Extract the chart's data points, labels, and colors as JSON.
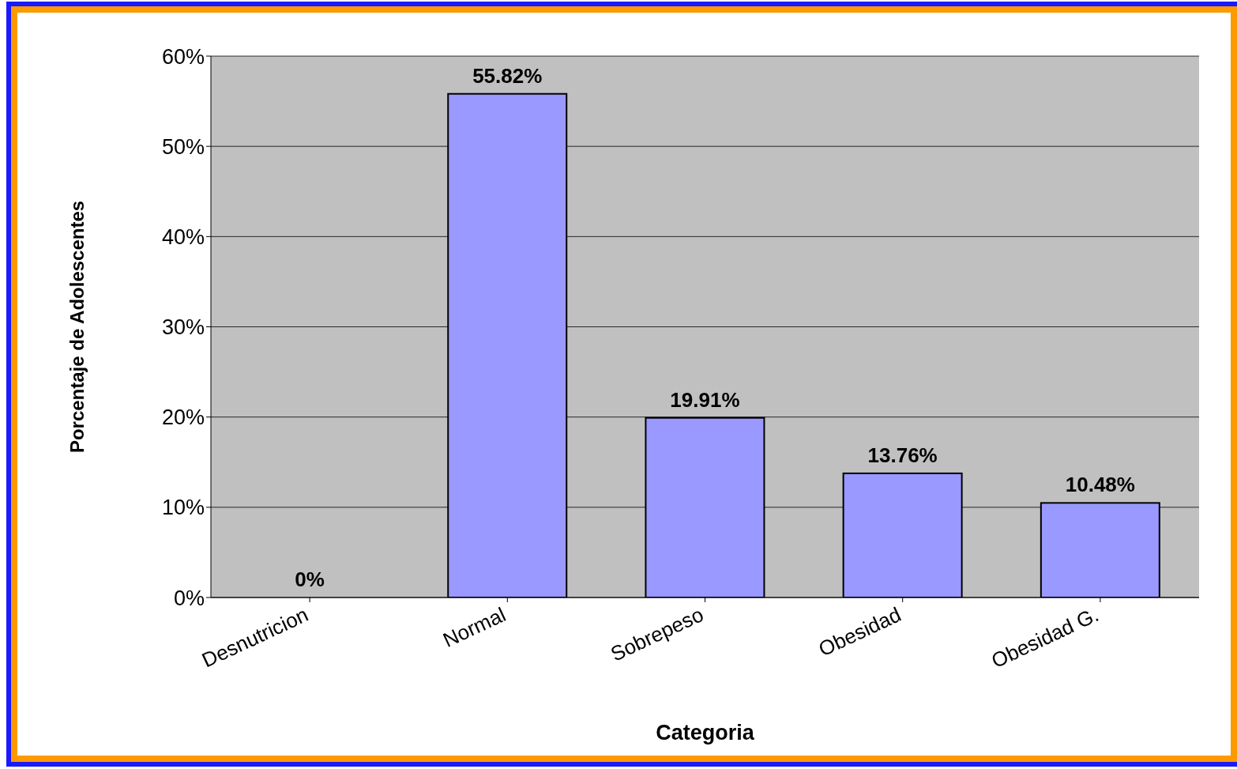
{
  "chart_data": {
    "type": "bar",
    "xlabel": "Categoria",
    "ylabel": "Porcentaje de Adolescentes",
    "categories": [
      "Desnutricion",
      "Normal",
      "Sobrepeso",
      "Obesidad",
      "Obesidad G."
    ],
    "values": [
      0,
      55.82,
      19.91,
      13.76,
      10.48
    ],
    "value_labels": [
      "0%",
      "55.82%",
      "19.91%",
      "13.76%",
      "10.48%"
    ],
    "color": "#9999ff",
    "ylim": [
      0,
      60
    ],
    "yticks": [
      {
        "value": 0,
        "label": "0%"
      },
      {
        "value": 10,
        "label": "10%"
      },
      {
        "value": 20,
        "label": "20%"
      },
      {
        "value": 30,
        "label": "30%"
      },
      {
        "value": 40,
        "label": "40%"
      },
      {
        "value": 50,
        "label": "50%"
      },
      {
        "value": 60,
        "label": "60%"
      }
    ],
    "grid": "y"
  }
}
